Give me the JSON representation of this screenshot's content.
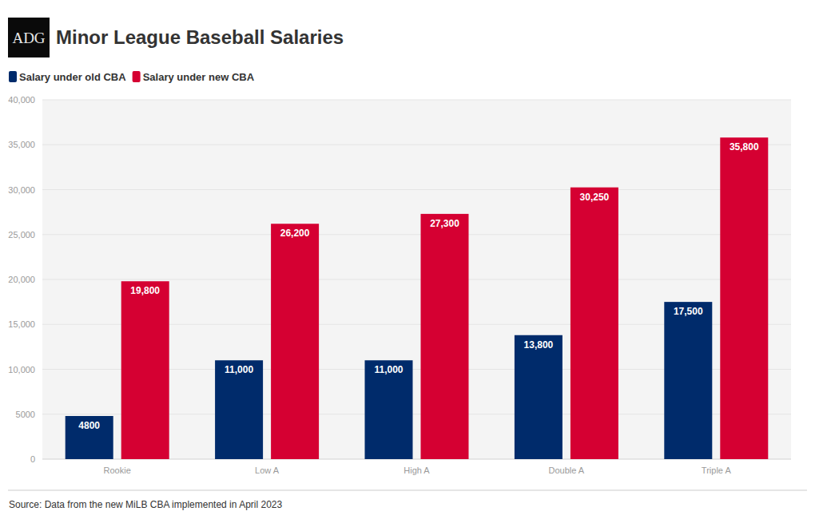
{
  "chart_data": {
    "type": "bar",
    "logo_text": "ADG",
    "title": "Minor League Baseball Salaries",
    "source": "Source: Data from the new MiLB CBA implemented in April 2023",
    "categories": [
      "Rookie",
      "Low A",
      "High A",
      "Double A",
      "Triple A"
    ],
    "series": [
      {
        "name": "Salary under old CBA",
        "color": "#002b6b",
        "values": [
          4800,
          11000,
          11000,
          13800,
          17500
        ],
        "value_labels": [
          "4800",
          "11,000",
          "11,000",
          "13,800",
          "17,500"
        ]
      },
      {
        "name": "Salary under new CBA",
        "color": "#d50032",
        "values": [
          19800,
          26200,
          27300,
          30250,
          35800
        ],
        "value_labels": [
          "19,800",
          "26,200",
          "27,300",
          "30,250",
          "35,800"
        ]
      }
    ],
    "ylim": [
      0,
      40000
    ],
    "yticks": [
      0,
      5000,
      {
        "value": 10000,
        "label": "10,000"
      },
      {
        "value": 15000,
        "label": "15,000"
      },
      {
        "value": 20000,
        "label": "20,000"
      },
      {
        "value": 25000,
        "label": "25,000"
      },
      {
        "value": 30000,
        "label": "30,000"
      },
      {
        "value": 35000,
        "label": "35,000"
      },
      {
        "value": 40000,
        "label": "40,000"
      }
    ],
    "grid": true,
    "legend": "top-left",
    "data_labels": true
  }
}
